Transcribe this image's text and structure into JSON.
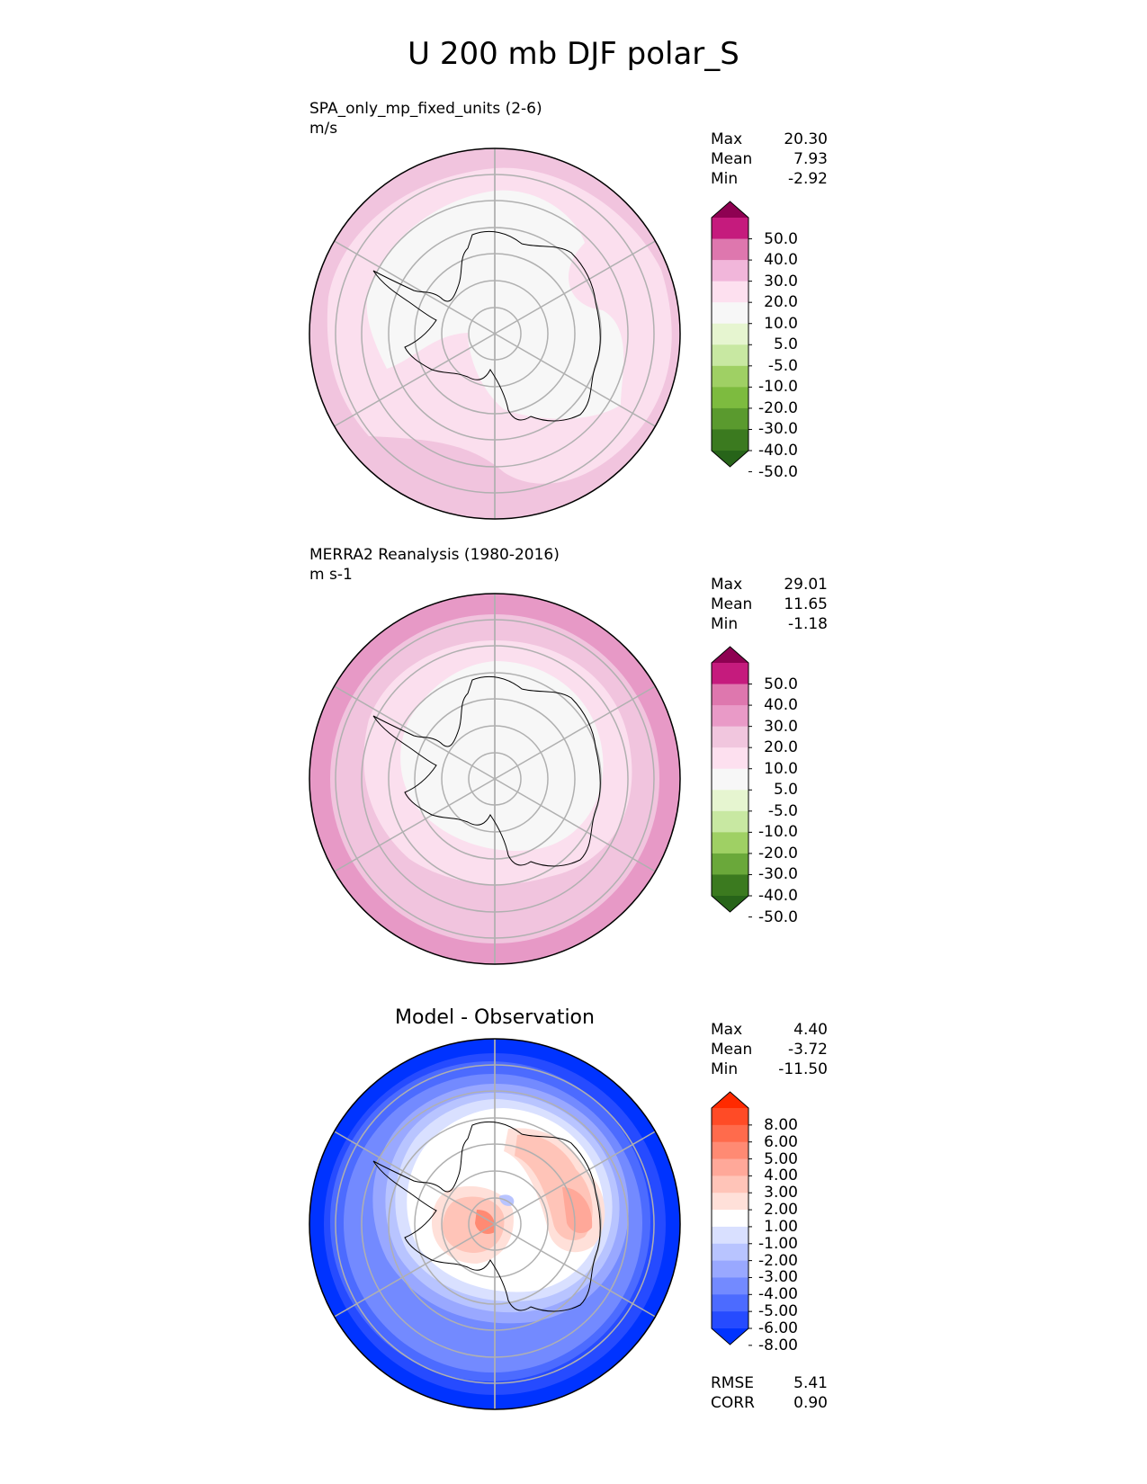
{
  "title": "U 200 mb DJF polar_S",
  "panels": [
    {
      "name": "SPA_only_mp_fixed_units (2-6)",
      "units": "m/s",
      "stats": [
        {
          "label": "Max",
          "value": "20.30"
        },
        {
          "label": "Mean",
          "value": "7.93"
        },
        {
          "label": "Min",
          "value": "-2.92"
        }
      ],
      "colorbar": {
        "ticks": [
          "50.0",
          "40.0",
          "30.0",
          "20.0",
          "10.0",
          "5.0",
          "-5.0",
          "-10.0",
          "-20.0",
          "-30.0",
          "-40.0",
          "-50.0"
        ],
        "colors": [
          "#8e0152",
          "#c51b7d",
          "#de77ae",
          "#f1b6da",
          "#fde0ef",
          "#f7f7f7",
          "#e6f5d0",
          "#c8e8a2",
          "#9fd064",
          "#7dbb3f",
          "#5a9a2e",
          "#3b7a1f",
          "#276419"
        ]
      }
    },
    {
      "name": "MERRA2 Reanalysis (1980-2016)",
      "units": "m s-1",
      "stats": [
        {
          "label": "Max",
          "value": "29.01"
        },
        {
          "label": "Mean",
          "value": "11.65"
        },
        {
          "label": "Min",
          "value": "-1.18"
        }
      ],
      "colorbar": {
        "ticks": [
          "50.0",
          "40.0",
          "30.0",
          "20.0",
          "10.0",
          "5.0",
          "-5.0",
          "-10.0",
          "-20.0",
          "-30.0",
          "-40.0",
          "-50.0"
        ],
        "colors": [
          "#8e0152",
          "#c51b7d",
          "#de77ae",
          "#e99ac7",
          "#f1c6de",
          "#fde0ef",
          "#f7f7f7",
          "#e6f5d0",
          "#c8e8a2",
          "#9fd064",
          "#6aa83a",
          "#3b7a1f",
          "#276419"
        ]
      }
    },
    {
      "name": "Model - Observation",
      "stats": [
        {
          "label": "Max",
          "value": "4.40"
        },
        {
          "label": "Mean",
          "value": "-3.72"
        },
        {
          "label": "Min",
          "value": "-11.50"
        }
      ],
      "metrics": [
        {
          "label": "RMSE",
          "value": "5.41"
        },
        {
          "label": "CORR",
          "value": "0.90"
        }
      ],
      "colorbar": {
        "ticks": [
          "8.00",
          "6.00",
          "5.00",
          "4.00",
          "3.00",
          "2.00",
          "1.00",
          "-1.00",
          "-2.00",
          "-3.00",
          "-4.00",
          "-5.00",
          "-6.00",
          "-8.00"
        ],
        "colors": [
          "#ff2a00",
          "#ff4b26",
          "#ff6b4c",
          "#ff8a73",
          "#ffa899",
          "#ffc4b8",
          "#ffe0d9",
          "#ffffff",
          "#d9e0ff",
          "#b8c4ff",
          "#99a8ff",
          "#738aff",
          "#4c6bff",
          "#264bff",
          "#0033ff"
        ]
      }
    }
  ],
  "chart_data": [
    {
      "type": "heatmap",
      "title": "SPA_only_mp_fixed_units (2-6)",
      "units": "m/s",
      "projection": "south polar stereographic",
      "variable": "U 200 mb DJF",
      "levels": [
        -50,
        -40,
        -30,
        -20,
        -10,
        -5,
        5,
        10,
        20,
        30,
        40,
        50
      ],
      "max": 20.3,
      "mean": 7.93,
      "min": -2.92
    },
    {
      "type": "heatmap",
      "title": "MERRA2 Reanalysis (1980-2016)",
      "units": "m s-1",
      "projection": "south polar stereographic",
      "variable": "U 200 mb DJF",
      "levels": [
        -50,
        -40,
        -30,
        -20,
        -10,
        -5,
        5,
        10,
        20,
        30,
        40,
        50
      ],
      "max": 29.01,
      "mean": 11.65,
      "min": -1.18
    },
    {
      "type": "heatmap",
      "title": "Model - Observation",
      "projection": "south polar stereographic",
      "levels": [
        -8,
        -6,
        -5,
        -4,
        -3,
        -2,
        -1,
        1,
        2,
        3,
        4,
        5,
        6,
        8
      ],
      "max": 4.4,
      "mean": -3.72,
      "min": -11.5,
      "rmse": 5.41,
      "corr": 0.9
    }
  ]
}
